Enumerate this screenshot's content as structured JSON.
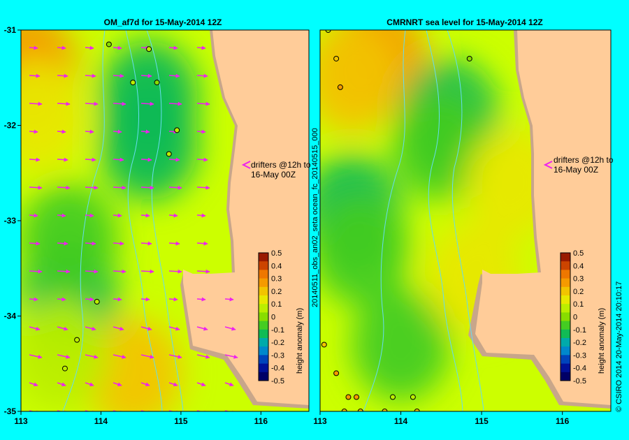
{
  "figure": {
    "background": "#00ffff",
    "land_color": "#ffcc99",
    "coast_color": "#c8a68a",
    "bathy_color": "#66ddee",
    "arrow_color": "#ee22ee",
    "side_text": "20140511_obs_an02_seta     ocean_fc_20140515_000",
    "credit": "© CSIRO 2014   20-May-2014 20:10:17"
  },
  "colorbar": {
    "label": "height anomaly (m)",
    "ticks": [
      "0.5",
      "0.4",
      "0.3",
      "0.2",
      "0.1",
      "0",
      "-0.1",
      "-0.2",
      "-0.3",
      "-0.4",
      "-0.5"
    ],
    "colors": [
      "#991a00",
      "#cc4400",
      "#ee7700",
      "#f59a00",
      "#f2c400",
      "#e8e800",
      "#bbee00",
      "#88dd00",
      "#44cc22",
      "#11bb55",
      "#00aaaa",
      "#0088cc",
      "#0044bb",
      "#001199",
      "#000066"
    ]
  },
  "chart_data": [
    {
      "type": "heatmap",
      "title": "OM_af7d for 15-May-2014 12Z",
      "xlim": [
        113,
        116.6
      ],
      "ylim": [
        -35,
        -31
      ],
      "x_ticks": [
        "113",
        "114",
        "115",
        "116"
      ],
      "y_ticks": [
        "-31",
        "-32",
        "-33",
        "-34",
        "-35"
      ],
      "annotation": "drifters @12h to\n16-May 00Z",
      "anomaly_patches": [
        {
          "lon": 113.1,
          "lat": -31.4,
          "value": 0.25
        },
        {
          "lon": 113.2,
          "lat": -31.9,
          "value": 0.15
        },
        {
          "lon": 114.6,
          "lat": -31.7,
          "value": -0.15
        },
        {
          "lon": 114.6,
          "lat": -32.2,
          "value": -0.1
        },
        {
          "lon": 113.6,
          "lat": -33.8,
          "value": -0.15
        },
        {
          "lon": 113.6,
          "lat": -33.2,
          "value": -0.05
        },
        {
          "lon": 114.4,
          "lat": -34.6,
          "value": 0.2
        },
        {
          "lon": 113.5,
          "lat": -34.4,
          "value": 0.05
        }
      ],
      "drifters": [
        {
          "lon": 114.1,
          "lat": -31.15,
          "value": 0.0
        },
        {
          "lon": 114.6,
          "lat": -31.2,
          "value": 0.05
        },
        {
          "lon": 114.4,
          "lat": -31.55,
          "value": 0.05
        },
        {
          "lon": 114.7,
          "lat": -31.55,
          "value": 0.0
        },
        {
          "lon": 114.95,
          "lat": -32.05,
          "value": 0.05
        },
        {
          "lon": 114.85,
          "lat": -32.3,
          "value": 0.05
        },
        {
          "lon": 113.95,
          "lat": -33.85,
          "value": 0.05
        },
        {
          "lon": 113.7,
          "lat": -34.25,
          "value": 0.1
        },
        {
          "lon": 113.55,
          "lat": -34.55,
          "value": 0.05
        }
      ]
    },
    {
      "type": "heatmap",
      "title": "CMRNRT sea level  for 15-May-2014 12Z",
      "xlim": [
        113,
        116.6
      ],
      "ylim": [
        -35,
        -31
      ],
      "x_ticks": [
        "113",
        "114",
        "115",
        "116"
      ],
      "y_ticks": [],
      "annotation": "drifters @12h to\n16-May 00Z",
      "anomaly_patches": [
        {
          "lon": 113.7,
          "lat": -31.3,
          "value": 0.25
        },
        {
          "lon": 113.4,
          "lat": -31.5,
          "value": 0.2
        },
        {
          "lon": 114.6,
          "lat": -31.9,
          "value": -0.15
        },
        {
          "lon": 114.5,
          "lat": -32.2,
          "value": -0.05
        },
        {
          "lon": 113.4,
          "lat": -32.9,
          "value": -0.15
        },
        {
          "lon": 113.5,
          "lat": -33.3,
          "value": -0.05
        },
        {
          "lon": 114.0,
          "lat": -34.3,
          "value": -0.08
        },
        {
          "lon": 114.9,
          "lat": -33.6,
          "value": 0.15
        },
        {
          "lon": 115.4,
          "lat": -32.6,
          "value": 0.12
        }
      ],
      "drifters": [
        {
          "lon": 113.1,
          "lat": -31.0,
          "value": 0.05
        },
        {
          "lon": 113.2,
          "lat": -31.3,
          "value": 0.2
        },
        {
          "lon": 113.25,
          "lat": -31.6,
          "value": 0.3
        },
        {
          "lon": 114.85,
          "lat": -31.3,
          "value": 0.0
        },
        {
          "lon": 113.05,
          "lat": -34.3,
          "value": 0.2
        },
        {
          "lon": 113.2,
          "lat": -34.6,
          "value": 0.25
        },
        {
          "lon": 113.35,
          "lat": -34.85,
          "value": 0.3
        },
        {
          "lon": 113.45,
          "lat": -34.85,
          "value": 0.3
        },
        {
          "lon": 113.9,
          "lat": -34.85,
          "value": 0.05
        },
        {
          "lon": 114.15,
          "lat": -34.85,
          "value": 0.05
        },
        {
          "lon": 113.3,
          "lat": -35.0,
          "value": 0.2
        },
        {
          "lon": 113.5,
          "lat": -35.0,
          "value": 0.2
        },
        {
          "lon": 113.8,
          "lat": -35.0,
          "value": 0.2
        },
        {
          "lon": 114.2,
          "lat": -35.0,
          "value": 0.2
        }
      ]
    }
  ]
}
